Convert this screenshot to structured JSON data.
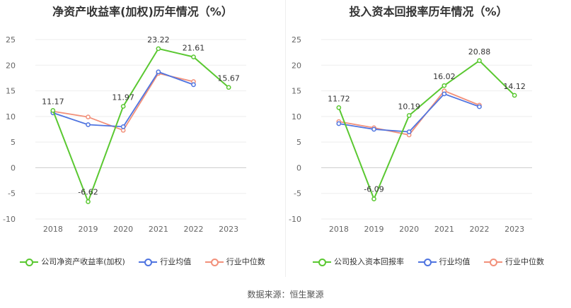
{
  "source_label": "数据来源：恒生聚源",
  "colors": {
    "company": "#5ac831",
    "industry_avg": "#4f74e0",
    "industry_median": "#f2907a",
    "grid": "#eeeeee",
    "axis": "#cccccc"
  },
  "chart_data": [
    {
      "type": "line",
      "title": "净资产收益率(加权)历年情况（%）",
      "categories": [
        "2018",
        "2019",
        "2020",
        "2021",
        "2022",
        "2023"
      ],
      "ylim": [
        -10,
        25
      ],
      "yticks": [
        -10,
        -5,
        0,
        5,
        10,
        15,
        20,
        25
      ],
      "grid": true,
      "legend_position": "bottom",
      "series": [
        {
          "name": "公司净资产收益率(加权)",
          "color": "#5ac831",
          "values": [
            11.17,
            -6.62,
            11.97,
            23.22,
            21.61,
            15.67
          ],
          "labels": [
            "11.17",
            "-6.62",
            "11.97",
            "23.22",
            "21.61",
            "15.67"
          ]
        },
        {
          "name": "行业均值",
          "color": "#4f74e0",
          "values": [
            10.7,
            8.4,
            8.0,
            18.7,
            16.2,
            null
          ]
        },
        {
          "name": "行业中位数",
          "color": "#f2907a",
          "values": [
            11.0,
            9.9,
            7.3,
            18.4,
            16.8,
            null
          ]
        }
      ]
    },
    {
      "type": "line",
      "title": "投入资本回报率历年情况（%）",
      "categories": [
        "2018",
        "2019",
        "2020",
        "2021",
        "2022",
        "2023"
      ],
      "ylim": [
        -10,
        25
      ],
      "yticks": [
        -10,
        -5,
        0,
        5,
        10,
        15,
        20,
        25
      ],
      "grid": true,
      "legend_position": "bottom",
      "series": [
        {
          "name": "公司投入资本回报率",
          "color": "#5ac831",
          "values": [
            11.72,
            -6.09,
            10.19,
            16.02,
            20.88,
            14.12
          ],
          "labels": [
            "11.72",
            "-6.09",
            "10.19",
            "16.02",
            "20.88",
            "14.12"
          ]
        },
        {
          "name": "行业均值",
          "color": "#4f74e0",
          "values": [
            8.6,
            7.5,
            7.0,
            14.4,
            11.9,
            null
          ]
        },
        {
          "name": "行业中位数",
          "color": "#f2907a",
          "values": [
            9.0,
            7.8,
            6.4,
            15.0,
            12.2,
            null
          ]
        }
      ]
    }
  ]
}
